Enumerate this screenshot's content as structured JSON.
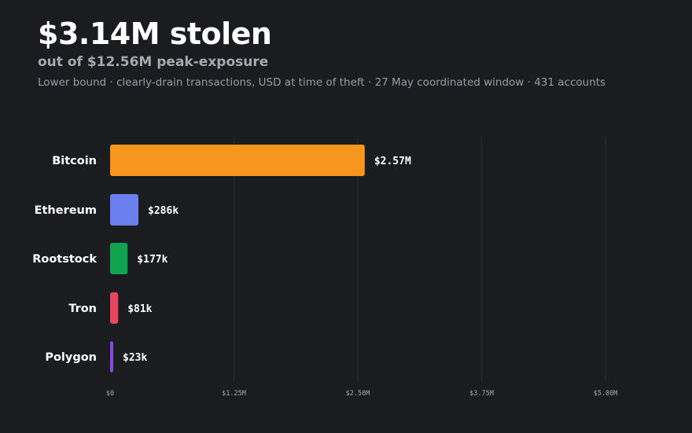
{
  "header": {
    "headline": "$3.14M stolen",
    "subhead": "out of $12.56M peak-exposure",
    "note": "Lower bound · clearly-drain transactions, USD at time of theft · 27 May coordinated window · 431 accounts"
  },
  "colors": {
    "background": "#1b1c20",
    "gridline": "#2e2f35"
  },
  "chart_data": {
    "type": "bar",
    "orientation": "horizontal",
    "categories": [
      "Bitcoin",
      "Ethereum",
      "Rootstock",
      "Tron",
      "Polygon"
    ],
    "values": [
      2570000,
      286000,
      177000,
      81000,
      23000
    ],
    "value_labels": [
      "$2.57M",
      "$286k",
      "$177k",
      "$81k",
      "$23k"
    ],
    "bar_colors": [
      "#f7961e",
      "#6b7fef",
      "#12a351",
      "#e84561",
      "#8a48e6"
    ],
    "xlim": [
      0,
      5000000
    ],
    "xticks": [
      0,
      1250000,
      2500000,
      3750000,
      5000000
    ],
    "xtick_labels": [
      "$0",
      "$1.25M",
      "$2.50M",
      "$3.75M",
      "$5.00M"
    ],
    "grid": "vertical",
    "title": "$3.14M stolen",
    "xlabel": "",
    "ylabel": ""
  }
}
